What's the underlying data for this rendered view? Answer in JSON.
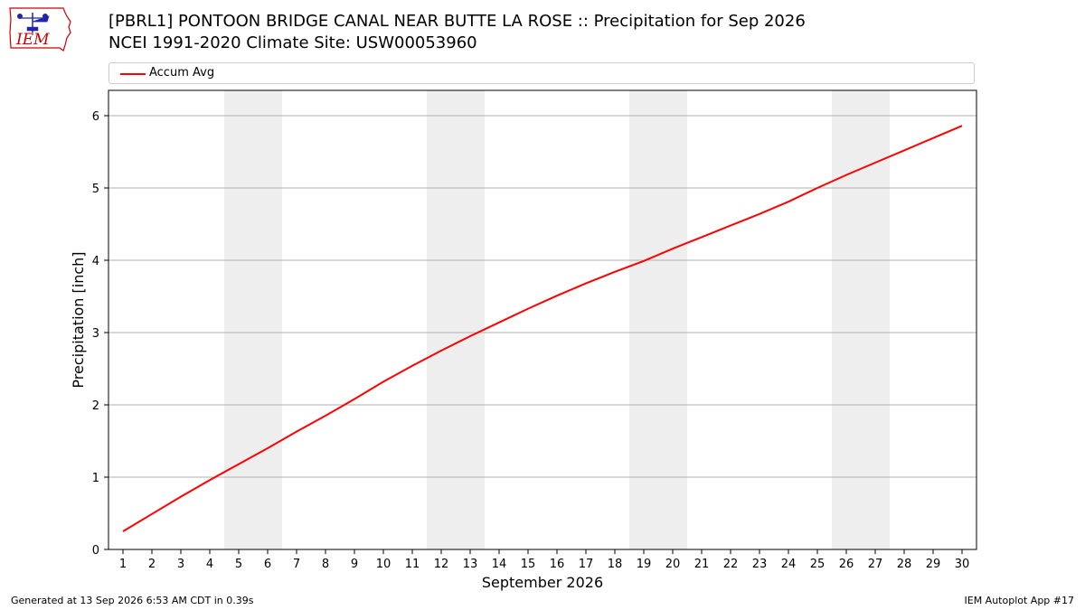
{
  "title": "[PBRL1] PONTOON BRIDGE CANAL NEAR BUTTE LA ROSE :: Precipitation for Sep 2026",
  "subtitle": "NCEI 1991-2020 Climate Site: USW00053960",
  "footer": {
    "generated": "Generated at 13 Sep 2026 6:53 AM CDT in 0.39s",
    "app": "IEM Autoplot App #17"
  },
  "logo": {
    "text": "IEM",
    "colors": {
      "text": "#cc0000",
      "outline": "#cc0000",
      "instrument": "#2222aa"
    }
  },
  "chart_data": {
    "type": "line",
    "xlabel": "September 2026",
    "ylabel": "Precipitation [inch]",
    "xlim": [
      0.5,
      30.5
    ],
    "ylim": [
      0,
      6.35
    ],
    "yticks": [
      0,
      1,
      2,
      3,
      4,
      5,
      6
    ],
    "xticks": [
      1,
      2,
      3,
      4,
      5,
      6,
      7,
      8,
      9,
      10,
      11,
      12,
      13,
      14,
      15,
      16,
      17,
      18,
      19,
      20,
      21,
      22,
      23,
      24,
      25,
      26,
      27,
      28,
      29,
      30
    ],
    "grid": "y",
    "weekend_shading": [
      [
        4.5,
        6.5
      ],
      [
        11.5,
        13.5
      ],
      [
        18.5,
        20.5
      ],
      [
        25.5,
        27.5
      ]
    ],
    "legend_position": "top, above plot",
    "series": [
      {
        "name": "Accum Avg",
        "color": "#ff0000",
        "x": [
          1,
          2,
          3,
          4,
          5,
          6,
          7,
          8,
          9,
          10,
          11,
          12,
          13,
          14,
          15,
          16,
          17,
          18,
          19,
          20,
          21,
          22,
          23,
          24,
          25,
          26,
          27,
          28,
          29,
          30
        ],
        "values": [
          0.25,
          0.49,
          0.73,
          0.96,
          1.18,
          1.4,
          1.63,
          1.85,
          2.08,
          2.32,
          2.54,
          2.75,
          2.95,
          3.14,
          3.33,
          3.51,
          3.68,
          3.84,
          3.99,
          4.16,
          4.32,
          4.48,
          4.64,
          4.81,
          5.0,
          5.18,
          5.35,
          5.52,
          5.69,
          5.86
        ]
      }
    ]
  }
}
